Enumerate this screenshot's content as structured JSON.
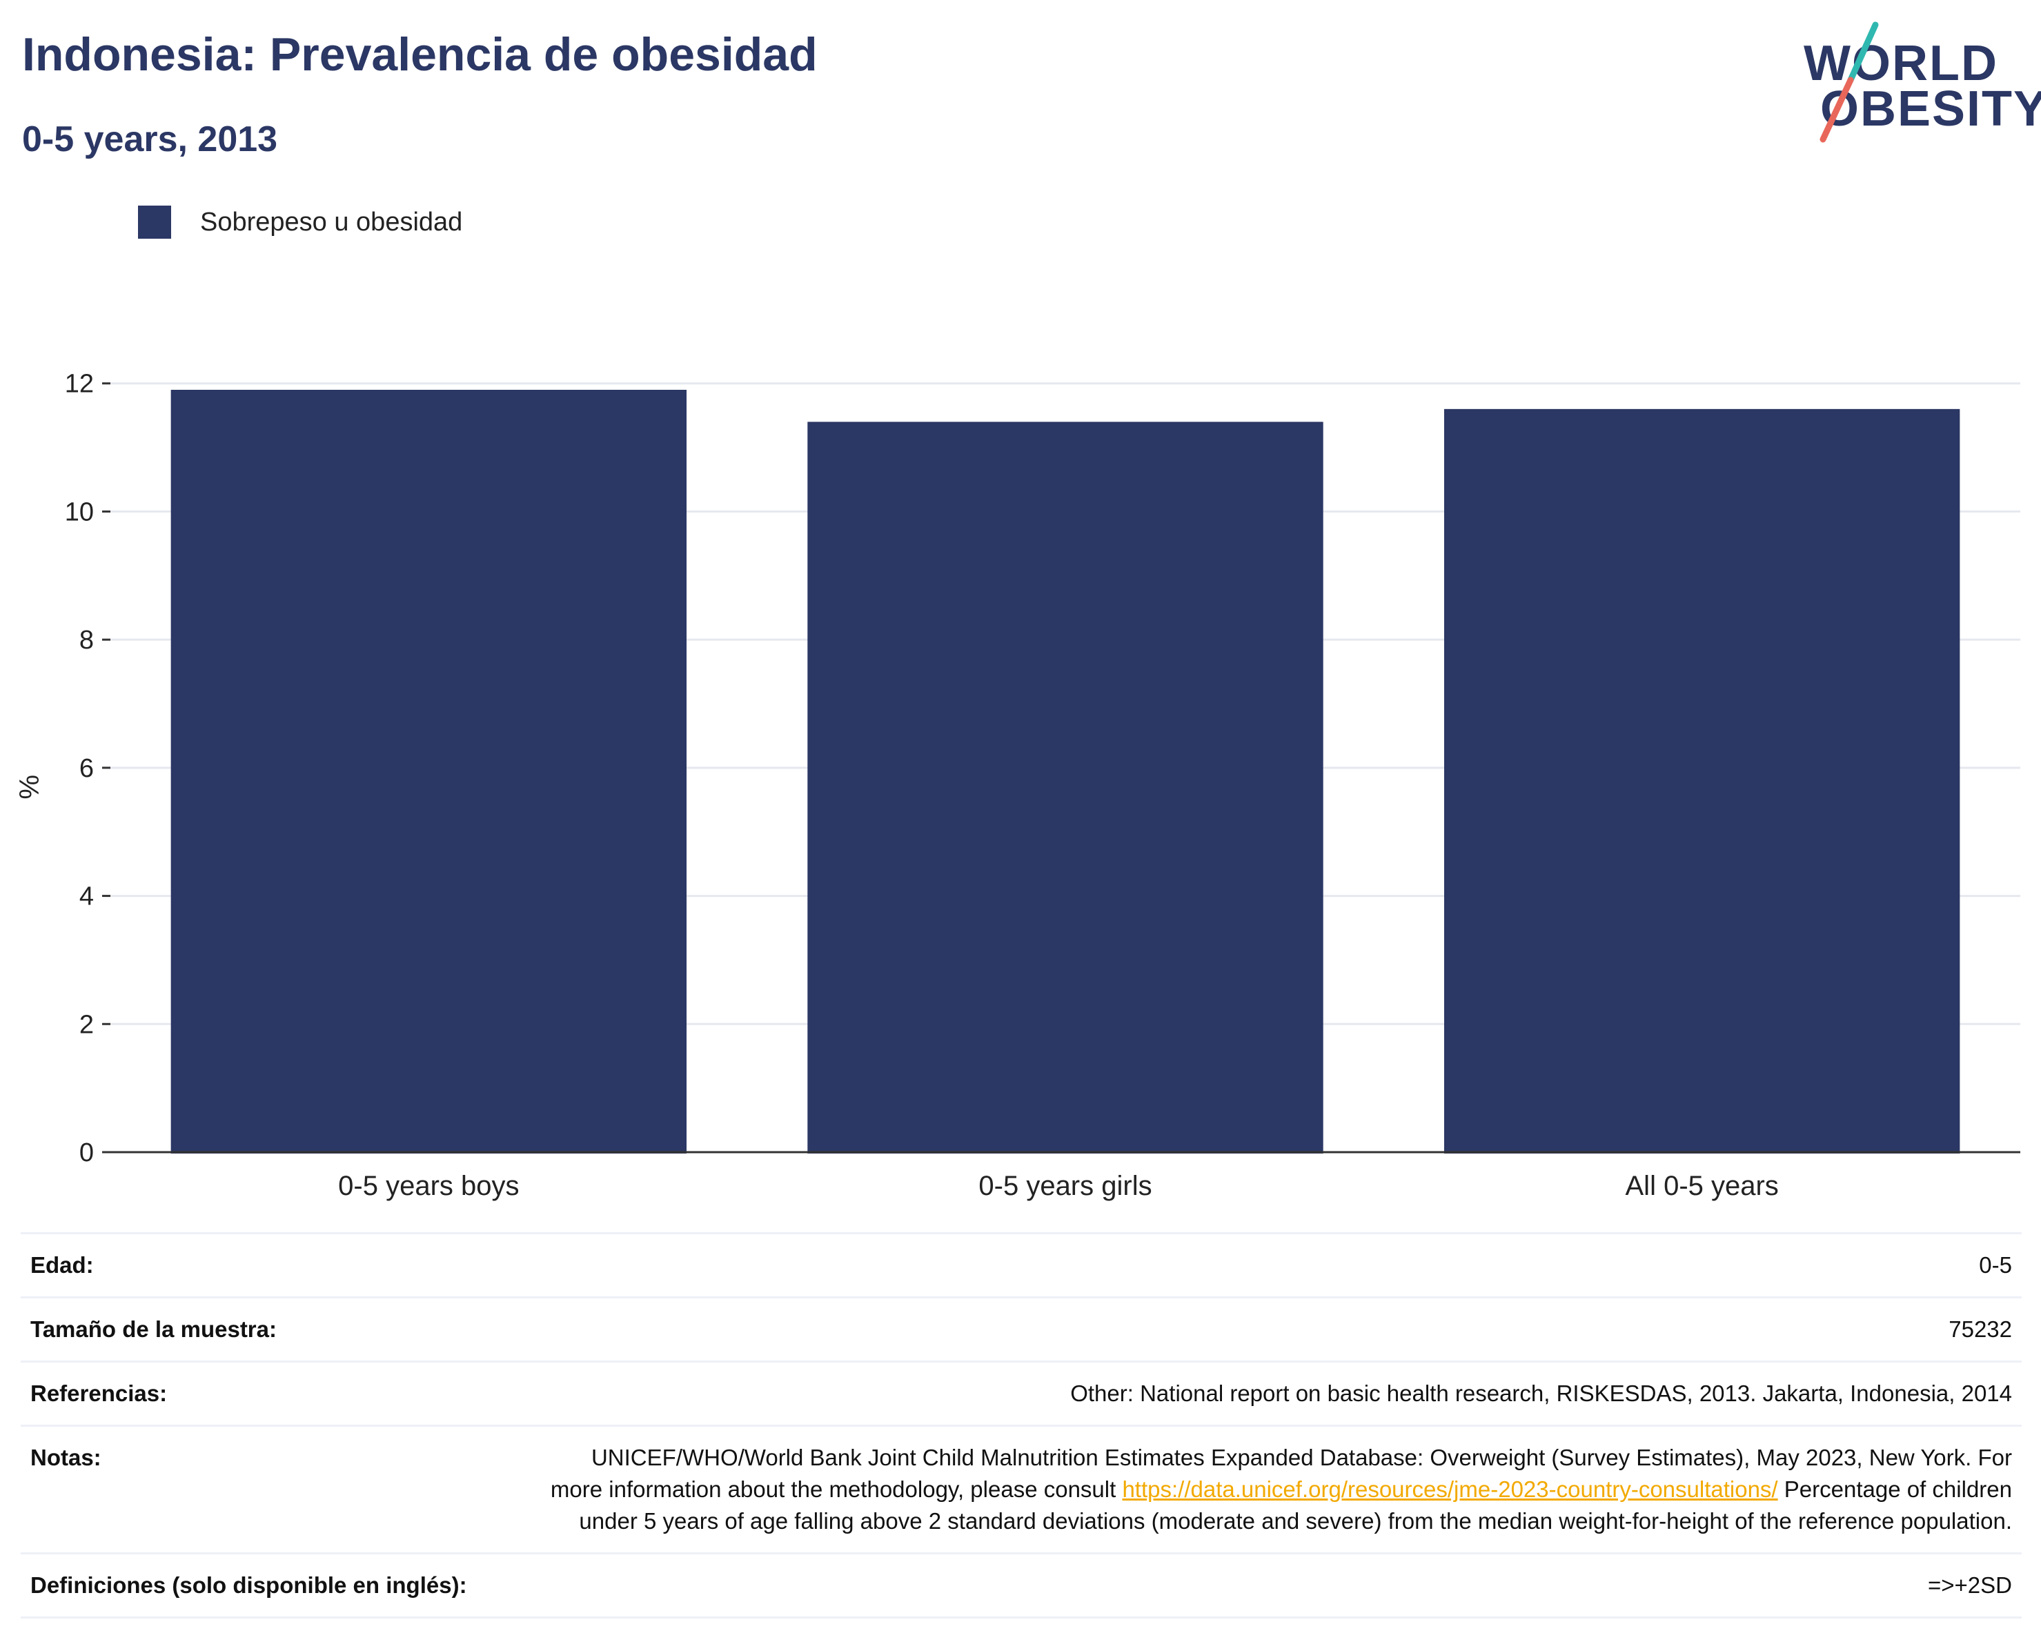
{
  "header": {
    "title": "Indonesia: Prevalencia de obesidad",
    "subtitle": "0-5 years, 2013"
  },
  "logo": {
    "line1": "WORLD",
    "line2": "OBESITY",
    "colors": {
      "text": "#2b3764",
      "slash_top": "#2fb8b0",
      "slash_bottom": "#e8675a"
    }
  },
  "legend": {
    "items": [
      {
        "label": "Sobrepeso u obesidad",
        "color": "#2b3764"
      }
    ]
  },
  "chart_data": {
    "type": "bar",
    "title": "Indonesia: Prevalencia de obesidad",
    "subtitle": "0-5 years, 2013",
    "categories": [
      "0-5 years boys",
      "0-5 years girls",
      "All 0-5 years"
    ],
    "series": [
      {
        "name": "Sobrepeso u obesidad",
        "values": [
          11.9,
          11.4,
          11.6
        ],
        "color": "#2b3764"
      }
    ],
    "xlabel": "",
    "ylabel": "%",
    "ylim": [
      0,
      12.6
    ],
    "yticks": [
      0,
      2,
      4,
      6,
      8,
      10,
      12
    ],
    "grid": true,
    "legend_position": "top-left"
  },
  "info": {
    "rows": [
      {
        "key": "Edad:",
        "value": "0-5"
      },
      {
        "key": "Tamaño de la muestra:",
        "value": "75232"
      },
      {
        "key": "Referencias:",
        "value": "Other: National report on basic health research, RISKESDAS, 2013. Jakarta, Indonesia, 2014"
      }
    ],
    "notes": {
      "key": "Notas:",
      "text_before": "UNICEF/WHO/World Bank Joint Child Malnutrition Estimates Expanded Database: Overweight (Survey Estimates), May 2023, New York. For more information about the methodology, please consult ",
      "link": "https://data.unicef.org/resources/jme-2023-country-consultations/",
      "text_after": " Percentage of children under 5 years of age falling above 2 standard deviations (moderate and severe) from the median weight-for-height of the reference population."
    },
    "definitions": {
      "key": "Definiciones (solo disponible en inglés):",
      "value": "=>+2SD"
    }
  }
}
